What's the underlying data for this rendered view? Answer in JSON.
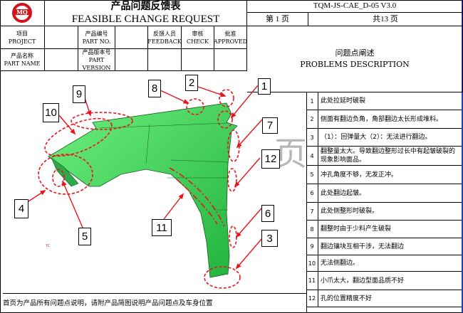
{
  "header": {
    "title_cn": "产品问题反馈表",
    "title_en": "FEASIBLE CHANGE REQUEST",
    "doc_code": "TQM-JS-CAE_D-05   V3.0",
    "page": "第 1 页",
    "total": "共13 页",
    "logo_text": "MQ"
  },
  "fields": {
    "project": {
      "cn": "项目",
      "en": "PROJECT"
    },
    "part_no": {
      "cn": "产品编号",
      "en": "PART NO."
    },
    "feedback": {
      "cn": "反馈人员",
      "en": "FEEDBACK"
    },
    "check": {
      "cn": "审核",
      "en": "CHECK"
    },
    "approved": {
      "cn": "批准",
      "en": "APPROVED"
    },
    "part_name": {
      "cn": "产品名称",
      "en": "PART NAME"
    },
    "part_version": {
      "cn": "产品版本号",
      "en": "PART VERSION"
    }
  },
  "problems_header": {
    "cn": "问题点阐述",
    "en": "PROBLEMS  DESCRIPTION"
  },
  "problems": [
    {
      "n": "1",
      "text": "此处拉延时破裂"
    },
    {
      "n": "2",
      "text": "侧面有翻边负角，角部翻边太长形成堆料。"
    },
    {
      "n": "3",
      "text": "（1）：回弹量大（2）：无法进行翻边。"
    },
    {
      "n": "4",
      "text": "翻整量太大。导致翻边整形过长中有起皱破裂的现象影响面品。"
    },
    {
      "n": "5",
      "text": "冲孔角度不够，无发正冲。"
    },
    {
      "n": "6",
      "text": "此处翻边起皱。"
    },
    {
      "n": "7",
      "text": "此处侧整形时破裂。"
    },
    {
      "n": "8",
      "text": "翻整时由于少料产生破裂"
    },
    {
      "n": "9",
      "text": "翻边镶块互相干涉，无法翻边"
    },
    {
      "n": "10",
      "text": "无法侧翻边。"
    },
    {
      "n": "11",
      "text": "小爪太大，翻边型面品质不好"
    },
    {
      "n": "12",
      "text": "孔的位置精度不好"
    }
  ],
  "figure": {
    "callouts": [
      "1",
      "2",
      "3",
      "4",
      "5",
      "6",
      "7",
      "8",
      "9",
      "10",
      "11",
      "12"
    ],
    "axis_label": "YC",
    "watermark": "页",
    "part_color": "#3ed65a",
    "mark_color": "#e8141c"
  },
  "footer_note": "首页为产品所有问题点说明，请附产品简图说明产品问题点及车身位置"
}
